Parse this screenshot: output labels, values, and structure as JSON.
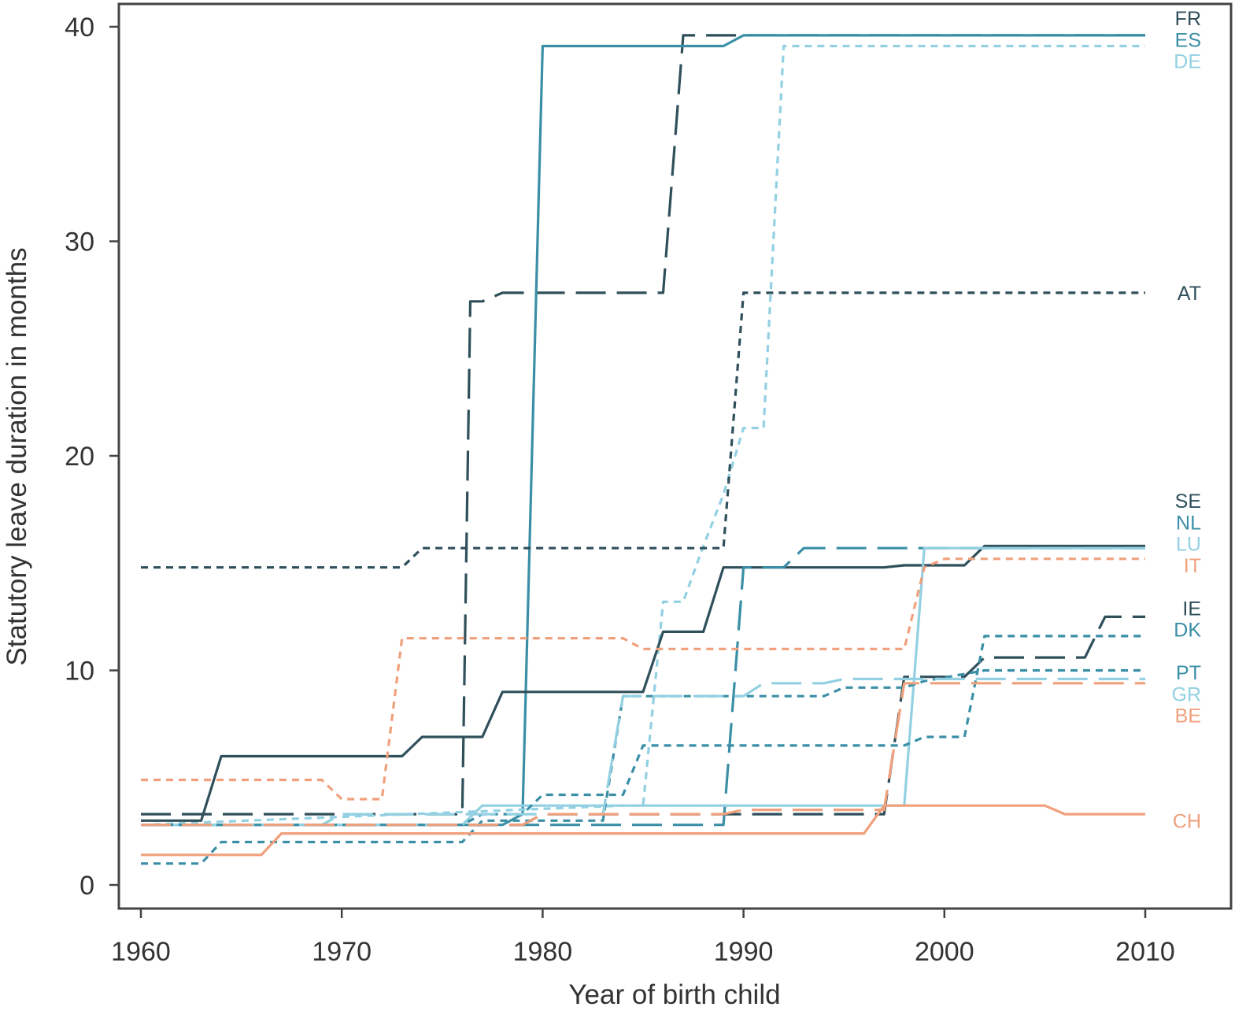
{
  "chart_data": {
    "type": "line",
    "xlabel": "Year of birth child",
    "ylabel": "Statutory leave duration in months",
    "xlim": [
      1960,
      2010
    ],
    "ylim": [
      0,
      40
    ],
    "xticks": [
      1960,
      1970,
      1980,
      1990,
      2000,
      2010
    ],
    "yticks": [
      0,
      10,
      20,
      30,
      40
    ],
    "grid": false,
    "legend": "direct labels at right end of lines",
    "series": [
      {
        "name": "FR",
        "color": "#2f4f5a",
        "dash": "longdash",
        "x": [
          1960,
          1976,
          1976.4,
          1977,
          1978,
          1979,
          1986,
          1987,
          1989,
          2010
        ],
        "y": [
          3.3,
          3.3,
          27.2,
          27.2,
          27.6,
          27.6,
          27.6,
          39.6,
          39.6,
          39.6
        ]
      },
      {
        "name": "ES",
        "color": "#3a8fa6",
        "dash": "solid",
        "x": [
          1960,
          1978,
          1979,
          1980,
          1989,
          1990,
          2010
        ],
        "y": [
          2.8,
          2.8,
          3.3,
          39.1,
          39.1,
          39.6,
          39.6
        ]
      },
      {
        "name": "DE",
        "color": "#92d0e2",
        "dash": "dotted",
        "x": [
          1960,
          1984,
          1985,
          1986,
          1987,
          1988,
          1989,
          1990,
          1991,
          1992,
          2010
        ],
        "y": [
          2.8,
          3.7,
          3.7,
          13.2,
          13.2,
          15.8,
          18.2,
          21.3,
          21.3,
          39.1,
          39.1
        ]
      },
      {
        "name": "AT",
        "color": "#2f4f5a",
        "dash": "dotted",
        "x": [
          1960,
          1973,
          1974,
          1989,
          1990,
          2010
        ],
        "y": [
          14.8,
          14.8,
          15.7,
          15.7,
          27.6,
          27.6
        ]
      },
      {
        "name": "SE",
        "color": "#2f4f5a",
        "dash": "solid",
        "x": [
          1960,
          1963,
          1964,
          1969,
          1970,
          1973,
          1974,
          1977,
          1978,
          1985,
          1986,
          1988,
          1989,
          1997,
          1998,
          2001,
          2002,
          2010
        ],
        "y": [
          3.0,
          3.0,
          6.0,
          6.0,
          6.0,
          6.0,
          6.9,
          6.9,
          9.0,
          9.0,
          11.8,
          11.8,
          14.8,
          14.8,
          14.9,
          14.9,
          15.8,
          15.8
        ]
      },
      {
        "name": "NL",
        "color": "#3a8fa6",
        "dash": "longdash",
        "x": [
          1960,
          1989,
          1990,
          1992,
          1993,
          2010
        ],
        "y": [
          2.8,
          2.8,
          14.8,
          14.8,
          15.7,
          15.7
        ]
      },
      {
        "name": "LU",
        "color": "#92d0e2",
        "dash": "solid",
        "x": [
          1960,
          1976,
          1977,
          1998,
          1999,
          2010
        ],
        "y": [
          2.8,
          2.8,
          3.7,
          3.7,
          15.7,
          15.7
        ]
      },
      {
        "name": "IT",
        "color": "#f0a07c",
        "dash": "dotted",
        "x": [
          1960,
          1969,
          1970,
          1972,
          1973,
          1984,
          1985,
          1998,
          1999,
          2000,
          2010
        ],
        "y": [
          4.9,
          4.9,
          4.0,
          4.0,
          11.5,
          11.5,
          11.0,
          11.0,
          14.8,
          15.2,
          15.2
        ]
      },
      {
        "name": "IE",
        "color": "#2f4f5a",
        "dash": "longdash",
        "x": [
          1960,
          1979,
          1980,
          1997,
          1998,
          2001,
          2002,
          2007,
          2008,
          2010
        ],
        "y": [
          2.8,
          2.8,
          3.3,
          3.3,
          9.7,
          9.7,
          10.6,
          10.6,
          12.5,
          12.5
        ]
      },
      {
        "name": "DK",
        "color": "#3a8fa6",
        "dash": "dotted",
        "x": [
          1960,
          1976,
          1977,
          1979,
          1980,
          1984,
          1985,
          1998,
          1999,
          2001,
          2002,
          2010
        ],
        "y": [
          2.8,
          2.8,
          3.3,
          3.3,
          4.2,
          4.2,
          6.5,
          6.5,
          6.9,
          6.9,
          11.6,
          11.6
        ]
      },
      {
        "name": "PT",
        "color": "#3a8fa6",
        "dash": "dotted",
        "x": [
          1960,
          1963,
          1964,
          1976,
          1977,
          1983,
          1984,
          1994,
          1995,
          1998,
          1999,
          2002,
          2010
        ],
        "y": [
          1.0,
          1.0,
          2.0,
          2.0,
          3.0,
          3.0,
          8.8,
          8.8,
          9.2,
          9.2,
          9.5,
          10.0,
          10.0
        ]
      },
      {
        "name": "GR",
        "color": "#92d0e2",
        "dash": "longdash",
        "x": [
          1960,
          1969,
          1970,
          1983,
          1984,
          1990,
          1991,
          1994,
          1995,
          2010
        ],
        "y": [
          2.8,
          2.8,
          3.3,
          3.3,
          8.8,
          8.8,
          9.4,
          9.4,
          9.6,
          9.6
        ]
      },
      {
        "name": "BE",
        "color": "#f0a07c",
        "dash": "longdash",
        "x": [
          1960,
          1979,
          1980,
          1989,
          1990,
          1997,
          1998,
          2010
        ],
        "y": [
          2.8,
          2.8,
          3.3,
          3.3,
          3.5,
          3.5,
          9.4,
          9.4
        ]
      },
      {
        "name": "CH",
        "color": "#f0a07c",
        "dash": "solid",
        "x": [
          1960,
          1966,
          1967,
          1996,
          1997,
          2005,
          2006,
          2010
        ],
        "y": [
          1.4,
          1.4,
          2.4,
          2.4,
          3.7,
          3.7,
          3.3,
          3.3
        ]
      }
    ],
    "labels": [
      {
        "text": "FR",
        "color": "#2f4f5a",
        "y": 40.4
      },
      {
        "text": "ES",
        "color": "#3a8fa6",
        "y": 39.4
      },
      {
        "text": "DE",
        "color": "#92d0e2",
        "y": 38.4
      },
      {
        "text": "AT",
        "color": "#2f4f5a",
        "y": 27.6
      },
      {
        "text": "SE",
        "color": "#2f4f5a",
        "y": 17.9
      },
      {
        "text": "NL",
        "color": "#3a8fa6",
        "y": 16.9
      },
      {
        "text": "LU",
        "color": "#92d0e2",
        "y": 15.9
      },
      {
        "text": "IT",
        "color": "#f0a07c",
        "y": 14.9
      },
      {
        "text": "IE",
        "color": "#2f4f5a",
        "y": 12.9
      },
      {
        "text": "DK",
        "color": "#3a8fa6",
        "y": 11.9
      },
      {
        "text": "PT",
        "color": "#3a8fa6",
        "y": 9.9
      },
      {
        "text": "GR",
        "color": "#92d0e2",
        "y": 8.9
      },
      {
        "text": "BE",
        "color": "#f0a07c",
        "y": 7.9
      },
      {
        "text": "CH",
        "color": "#f0a07c",
        "y": 3.0
      }
    ]
  }
}
